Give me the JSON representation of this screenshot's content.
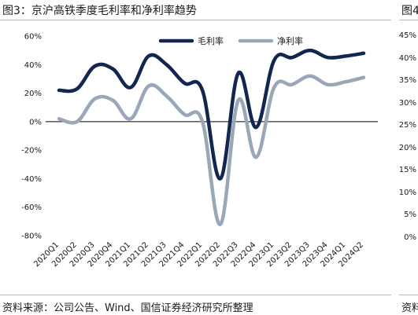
{
  "title": "图3：京沪高铁季度毛利率和净利率趋势",
  "source": "资料来源：公司公告、Wind、国信证券经济研究所整理",
  "next_panel": {
    "title": "图4",
    "source": "资料",
    "ticks": [
      "45%",
      "40%",
      "35%",
      "30%",
      "25%",
      "20%",
      "15%",
      "10%",
      "5%",
      "0%"
    ]
  },
  "chart_data": {
    "type": "line",
    "categories": [
      "2020Q1",
      "2020Q2",
      "2020Q3",
      "2020Q4",
      "2021Q1",
      "2021Q2",
      "2021Q3",
      "2021Q4",
      "2022Q1",
      "2022Q2",
      "2022Q3",
      "2022Q4",
      "2023Q1",
      "2023Q2",
      "2023Q3",
      "2023Q4",
      "2024Q1",
      "2024Q2"
    ],
    "series": [
      {
        "name": "毛利率",
        "color": "#13264f",
        "values": [
          22,
          23,
          39,
          37,
          24,
          46,
          40,
          27,
          22,
          -40,
          34,
          -4,
          43,
          45,
          50,
          45,
          46,
          48
        ]
      },
      {
        "name": "净利率",
        "color": "#9aa7b8",
        "values": [
          2,
          0,
          16,
          15,
          2,
          25,
          18,
          5,
          0,
          -72,
          15,
          -25,
          24,
          26,
          32,
          26,
          28,
          31
        ]
      }
    ],
    "ylim": [
      -80,
      60
    ],
    "yticks": [
      60,
      40,
      20,
      0,
      -20,
      -40,
      -60,
      -80
    ],
    "ytick_labels": [
      "60%",
      "40%",
      "20%",
      "0%",
      "-20%",
      "-40%",
      "-60%",
      "-80%"
    ],
    "legend_position": "top-right",
    "grid": false
  }
}
